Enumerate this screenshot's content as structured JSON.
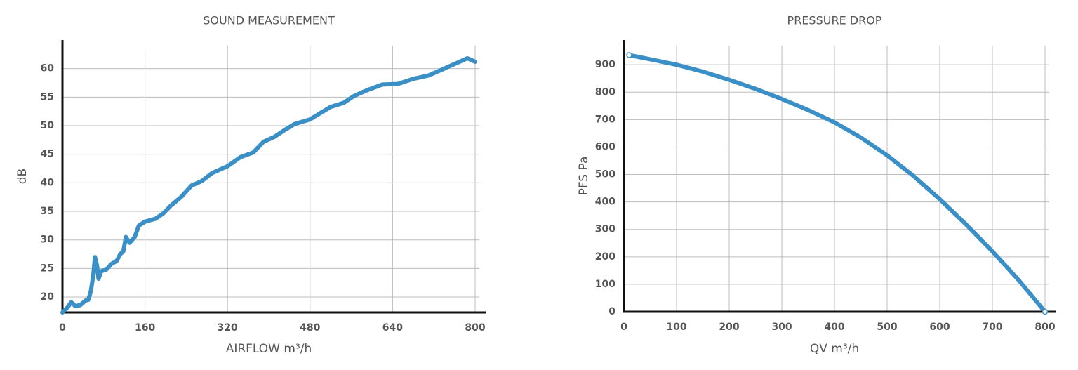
{
  "chart_data": [
    {
      "type": "line",
      "title": "SOUND MEASUREMENT",
      "x_label": "AIRFLOW m³/h",
      "y_label": "dB",
      "xlim": [
        0,
        800
      ],
      "xticks": [
        0,
        160,
        320,
        480,
        640,
        800
      ],
      "ylim": [
        17.3,
        65
      ],
      "yticks": [
        20,
        25,
        30,
        35,
        40,
        45,
        50,
        55,
        60
      ],
      "grid": true,
      "series": [
        {
          "color": "#3b8fc7",
          "x": [
            0,
            10,
            17,
            25,
            35,
            45,
            50,
            55,
            60,
            63,
            67,
            70,
            75,
            85,
            95,
            105,
            112,
            118,
            123,
            130,
            140,
            148,
            160,
            180,
            195,
            210,
            230,
            250,
            270,
            290,
            320,
            345,
            370,
            390,
            410,
            430,
            450,
            480,
            500,
            520,
            545,
            565,
            590,
            620,
            650,
            680,
            710,
            740,
            770,
            785,
            800
          ],
          "values": [
            17.3,
            18.2,
            19.1,
            18.4,
            18.6,
            19.4,
            19.5,
            21,
            24,
            27,
            25.5,
            23.2,
            24.5,
            24.8,
            25.8,
            26.3,
            27.5,
            28,
            30.5,
            29.5,
            30.5,
            32.5,
            33.2,
            33.7,
            34.6,
            36,
            37.5,
            39.5,
            40.3,
            41.7,
            42.9,
            44.5,
            45.3,
            47.2,
            48,
            49.2,
            50.3,
            51.1,
            52.2,
            53.3,
            54,
            55.2,
            56.2,
            57.2,
            57.3,
            58.2,
            58.8,
            60,
            61.2,
            61.8,
            61.2
          ]
        }
      ]
    },
    {
      "type": "line",
      "title": "PRESSURE DROP",
      "x_label": "QV m³/h",
      "y_label": "PFS Pa",
      "xlim": [
        0,
        800
      ],
      "xticks": [
        0,
        100,
        200,
        300,
        400,
        500,
        600,
        700,
        800
      ],
      "ylim": [
        0,
        990
      ],
      "yticks": [
        0,
        100,
        200,
        300,
        400,
        500,
        600,
        700,
        800,
        900
      ],
      "grid": true,
      "end_markers": true,
      "series": [
        {
          "color": "#3b8fc7",
          "x": [
            10,
            50,
            100,
            150,
            200,
            250,
            300,
            350,
            400,
            450,
            500,
            550,
            600,
            650,
            700,
            750,
            800
          ],
          "values": [
            935,
            920,
            900,
            875,
            845,
            812,
            775,
            735,
            690,
            635,
            570,
            495,
            410,
            318,
            220,
            115,
            0
          ]
        }
      ]
    }
  ]
}
